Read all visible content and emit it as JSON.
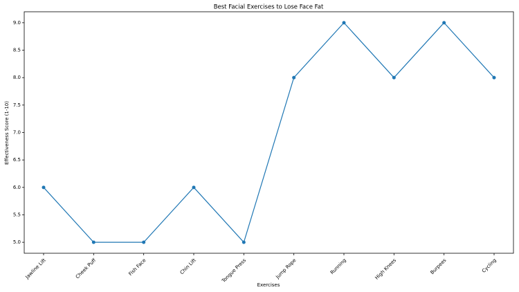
{
  "chart_data": {
    "type": "line",
    "title": "Best Facial Exercises to Lose Face Fat",
    "xlabel": "Exercises",
    "ylabel": "Effectiveness Score (1-10)",
    "categories": [
      "Jawline Lift",
      "Cheek Puff",
      "Fish Face",
      "Chin Lift",
      "Tongue Press",
      "Jump Rope",
      "Running",
      "High Knees",
      "Burpees",
      "Cycling"
    ],
    "values": [
      6,
      5,
      5,
      6,
      5,
      8,
      9,
      8,
      9,
      8
    ],
    "color": "#1f77b4",
    "ylim": [
      4.8,
      9.2
    ],
    "yticks": [
      {
        "value": 5,
        "label": "5.0"
      },
      5.5,
      {
        "value": 6,
        "label": "6.0"
      },
      6.5,
      {
        "value": 7,
        "label": "7.0"
      },
      7.5,
      {
        "value": 8,
        "label": "8.0"
      },
      8.5,
      {
        "value": 9,
        "label": "9.0"
      }
    ],
    "grid": false
  }
}
